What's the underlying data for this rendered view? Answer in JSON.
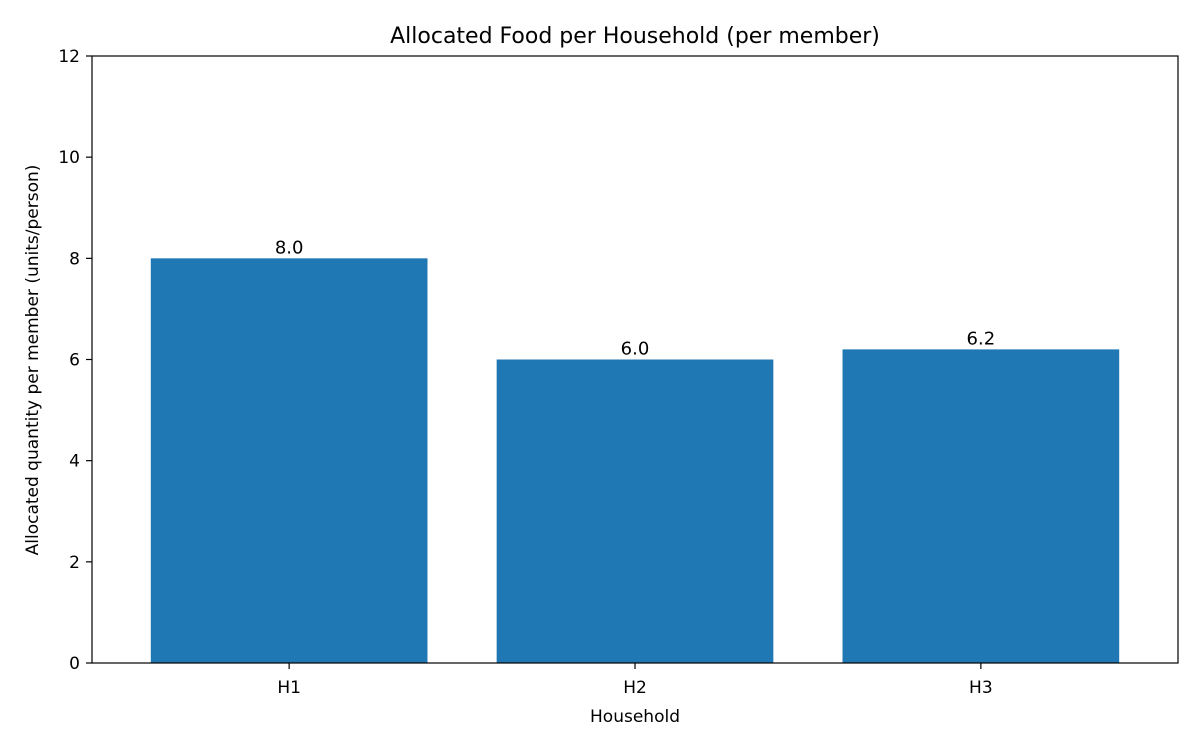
{
  "chart_data": {
    "type": "bar",
    "title": "Allocated Food per Household (per member)",
    "xlabel": "Household",
    "ylabel": "Allocated quantity per member (units/person)",
    "categories": [
      "H1",
      "H2",
      "H3"
    ],
    "values": [
      8.0,
      6.0,
      6.2
    ],
    "value_labels": [
      "8.0",
      "6.0",
      "6.2"
    ],
    "ylim": [
      0,
      12
    ],
    "yticks": [
      0,
      2,
      4,
      6,
      8,
      10,
      12
    ],
    "ytick_labels": [
      "0",
      "2",
      "4",
      "6",
      "8",
      "10",
      "12"
    ],
    "grid": false,
    "legend": "none",
    "bar_color": "#1f77b4"
  }
}
